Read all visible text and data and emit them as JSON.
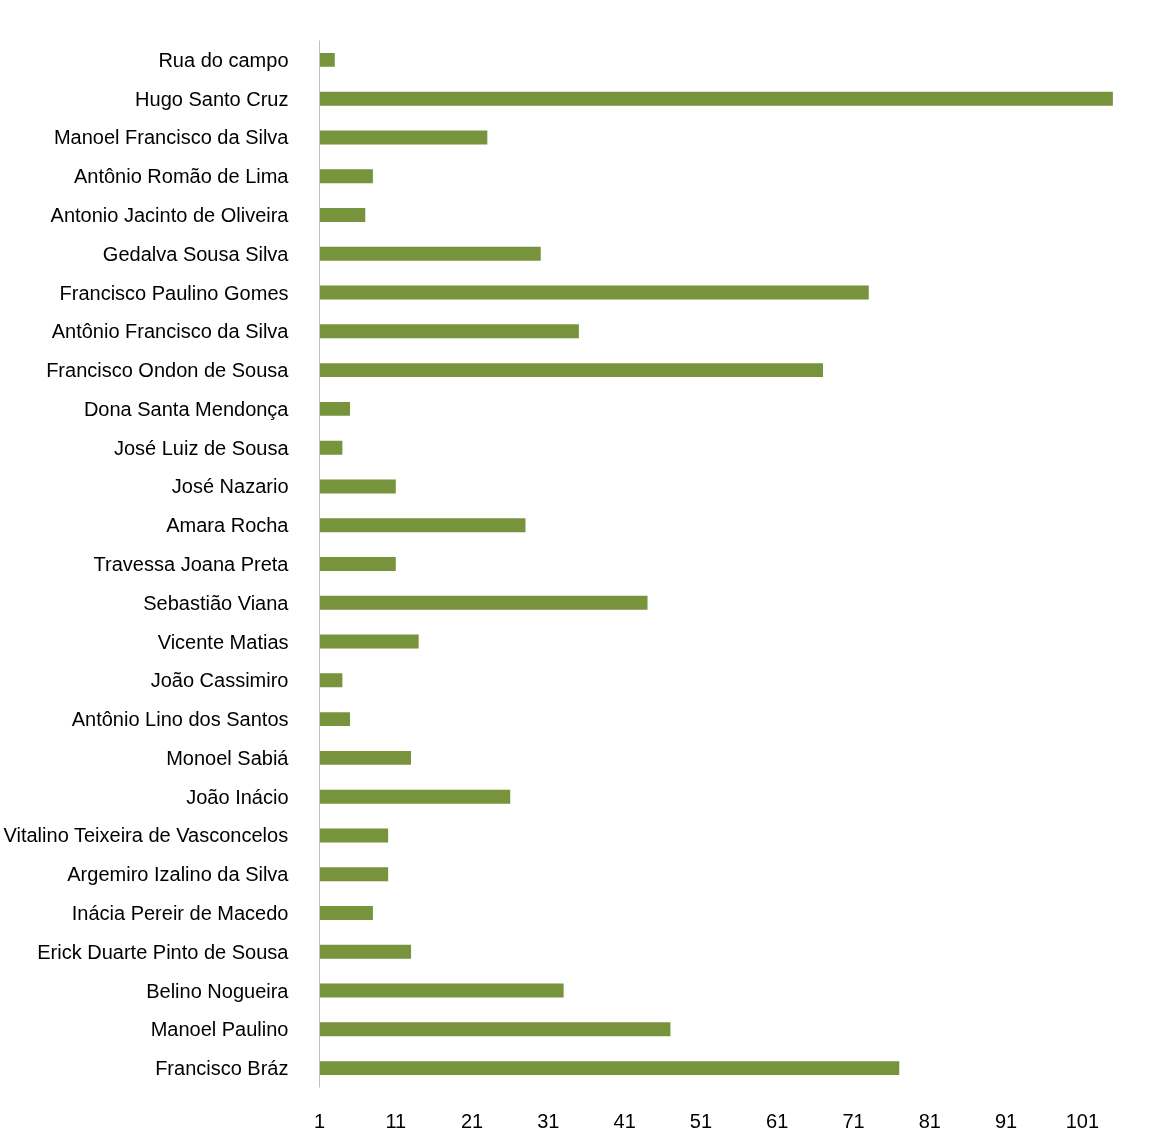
{
  "chart_data": {
    "type": "bar",
    "orientation": "horizontal",
    "color": "#77933c",
    "categories": [
      "Rua do campo",
      "Hugo Santo Cruz",
      "Manoel Francisco da Silva",
      "Antônio Romão de Lima",
      "Antonio Jacinto de Oliveira",
      "Gedalva Sousa Silva",
      "Francisco Paulino Gomes",
      "Antônio Francisco da Silva",
      "Francisco Ondon de Sousa",
      "Dona Santa Mendonça",
      "José Luiz de Sousa",
      "José Nazario",
      "Amara Rocha",
      "Travessa Joana Preta",
      "Sebastião Viana",
      "Vicente Matias",
      "João Cassimiro",
      "Antônio Lino dos Santos",
      "Monoel Sabiá",
      "João Inácio",
      "Vitalino Teixeira de Vasconcelos",
      "Argemiro Izalino da Silva",
      "Inácia Pereir de Macedo",
      "Erick Duarte Pinto de Sousa",
      "Belino Nogueira",
      "Manoel Paulino",
      "Francisco Bráz"
    ],
    "values": [
      3,
      105,
      23,
      8,
      7,
      30,
      73,
      35,
      67,
      5,
      4,
      11,
      28,
      11,
      44,
      14,
      4,
      5,
      13,
      26,
      10,
      10,
      8,
      13,
      33,
      47,
      77
    ],
    "xlim": [
      1,
      106
    ],
    "xticks": [
      1,
      11,
      21,
      31,
      41,
      51,
      61,
      71,
      81,
      91,
      101
    ],
    "grid": false
  }
}
